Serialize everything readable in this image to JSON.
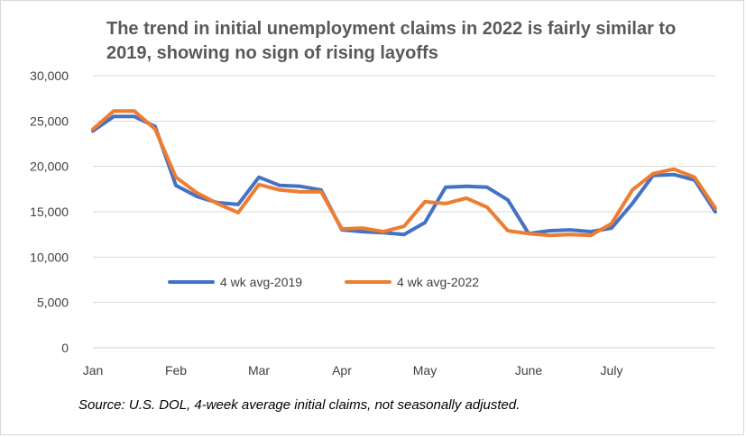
{
  "chart_data": {
    "type": "line",
    "title": "The trend in initial unemployment claims in 2022 is fairly similar to 2019, showing no sign of rising layoffs",
    "xlabel": "",
    "ylabel": "",
    "ylim": [
      0,
      30000
    ],
    "yticks": [
      "0",
      "5,000",
      "10,000",
      "15,000",
      "20,000",
      "25,000",
      "30,000"
    ],
    "ytick_values": [
      0,
      5000,
      10000,
      15000,
      20000,
      25000,
      30000
    ],
    "month_labels": [
      {
        "label": "Jan",
        "week": 1
      },
      {
        "label": "Feb",
        "week": 5
      },
      {
        "label": "Mar",
        "week": 9
      },
      {
        "label": "Apr",
        "week": 13
      },
      {
        "label": "May",
        "week": 17
      },
      {
        "label": "June",
        "week": 22
      },
      {
        "label": "July",
        "week": 26
      }
    ],
    "x": [
      1,
      2,
      3,
      4,
      5,
      6,
      7,
      8,
      9,
      10,
      11,
      12,
      13,
      14,
      15,
      16,
      17,
      18,
      19,
      20,
      21,
      22,
      23,
      24,
      25,
      26,
      27,
      28,
      29,
      30,
      31
    ],
    "grid": true,
    "legend_position": "lower-left",
    "series": [
      {
        "name": "4 wk avg-2019",
        "color": "#4472c4",
        "values": [
          23900,
          25500,
          25500,
          24400,
          17900,
          16700,
          16000,
          15800,
          18800,
          17900,
          17800,
          17400,
          13000,
          12800,
          12700,
          12500,
          13800,
          17700,
          17800,
          17700,
          16300,
          12600,
          12900,
          13000,
          12800,
          13200,
          15900,
          19000,
          19100,
          18500,
          15000
        ]
      },
      {
        "name": "4 wk avg-2022",
        "color": "#ed7d31",
        "values": [
          24100,
          26100,
          26100,
          24100,
          18800,
          17100,
          15900,
          14900,
          18000,
          17400,
          17200,
          17200,
          13100,
          13200,
          12800,
          13400,
          16100,
          15900,
          16500,
          15500,
          12900,
          12600,
          12400,
          12500,
          12400,
          13700,
          17400,
          19200,
          19700,
          18800,
          15400
        ]
      }
    ]
  },
  "source_note": "Source: U.S. DOL, 4-week average initial claims, not seasonally adjusted."
}
